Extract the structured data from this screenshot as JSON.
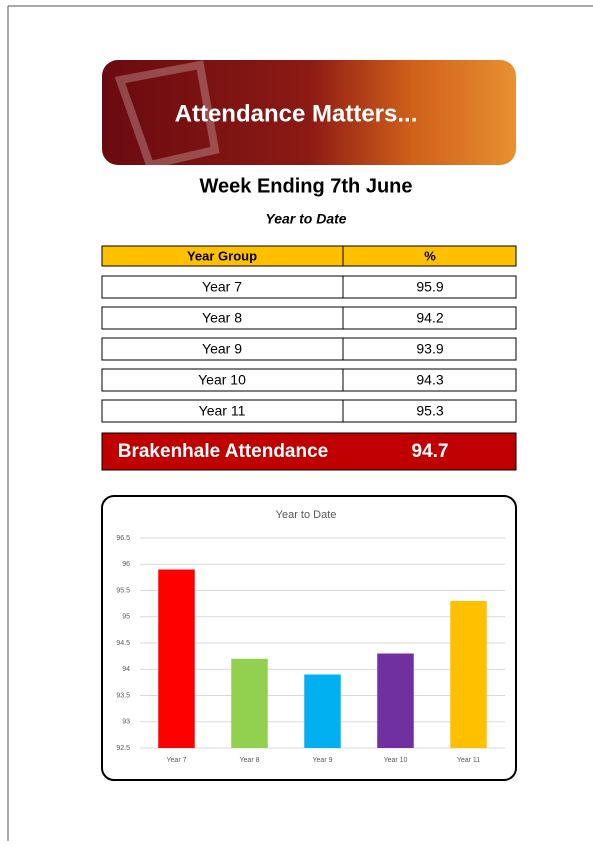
{
  "banner": {
    "title": "Attendance Matters..."
  },
  "heading": "Week Ending 7th June",
  "subheading": "Year to Date",
  "table": {
    "header": [
      "Year Group",
      "%"
    ],
    "rows": [
      [
        "Year 7",
        95.9
      ],
      [
        "Year 8",
        94.2
      ],
      [
        "Year 9",
        93.9
      ],
      [
        "Year 10",
        94.3
      ],
      [
        "Year 11",
        95.3
      ]
    ]
  },
  "total": {
    "label": "Brakenhale Attendance",
    "value": 94.7
  },
  "chart_data": {
    "type": "bar",
    "title": "Year to Date",
    "categories": [
      "Year 7",
      "Year 8",
      "Year 9",
      "Year 10",
      "Year 11"
    ],
    "values": [
      95.9,
      94.2,
      93.9,
      94.3,
      95.3
    ],
    "colors": [
      "#ff0000",
      "#92d050",
      "#00b0f0",
      "#7030a0",
      "#ffc000"
    ],
    "ylim": [
      92.5,
      96.5
    ],
    "yticks": [
      92.5,
      93,
      93.5,
      94,
      94.5,
      95,
      95.5,
      96,
      96.5
    ],
    "grid": true
  }
}
